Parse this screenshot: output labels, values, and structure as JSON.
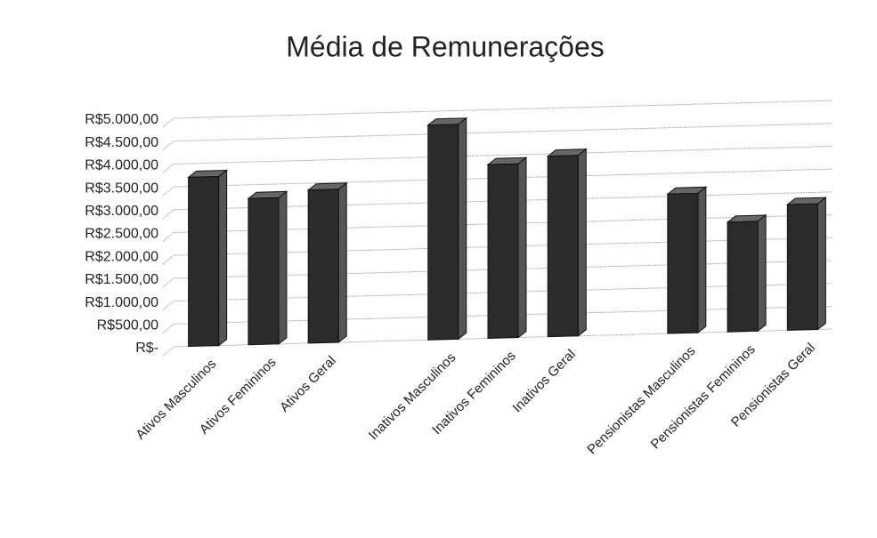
{
  "chart_data": {
    "type": "bar3d",
    "title": "Média de Remunerações",
    "categories": [
      "Ativos Masculinos",
      "Ativos Femininos",
      "Ativos Geral",
      null,
      "Inativos Masculinos",
      "Inativos Femininos",
      "Inativos Geral",
      null,
      "Pensionistas Masculinos",
      "Pensionistas Femininos",
      "Pensionistas Geral"
    ],
    "values": [
      3700,
      3200,
      3350,
      null,
      4700,
      3800,
      3950,
      null,
      3050,
      2400,
      2750
    ],
    "color": "#2b2b2b",
    "ylim": [
      0,
      5000
    ],
    "yticks": [
      {
        "value": 0,
        "label": "R$-"
      },
      {
        "value": 500,
        "label": "R$500,00"
      },
      {
        "value": 1000,
        "label": "R$1.000,00"
      },
      {
        "value": 1500,
        "label": "R$1.500,00"
      },
      {
        "value": 2000,
        "label": "R$2.000,00"
      },
      {
        "value": 2500,
        "label": "R$2.500,00"
      },
      {
        "value": 3000,
        "label": "R$3.000,00"
      },
      {
        "value": 3500,
        "label": "R$3.500,00"
      },
      {
        "value": 4000,
        "label": "R$4.000,00"
      },
      {
        "value": 4500,
        "label": "R$4.500,00"
      },
      {
        "value": 5000,
        "label": "R$5.000,00"
      }
    ],
    "grid": true
  }
}
